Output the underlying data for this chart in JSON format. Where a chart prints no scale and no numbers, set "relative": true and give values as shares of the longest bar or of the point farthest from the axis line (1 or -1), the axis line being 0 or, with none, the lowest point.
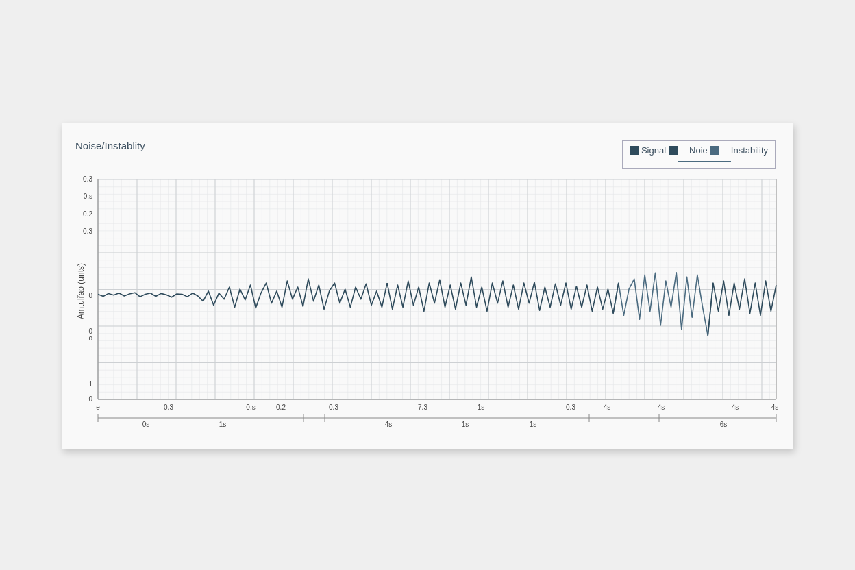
{
  "chart_data": {
    "type": "line",
    "title": "Noise/Instablity",
    "ylabel": "Amtulřao (unts)",
    "relative": true,
    "grid": true,
    "legend": "top right",
    "marker": "none",
    "line_style": "solid",
    "categories": [
      null,
      null,
      null,
      null,
      null,
      null,
      null,
      null,
      null,
      null,
      null,
      null,
      null,
      null,
      null,
      null,
      null,
      null,
      null,
      null,
      null,
      null,
      null,
      null,
      null,
      null,
      null,
      null,
      null,
      null,
      null,
      null,
      null,
      null,
      null,
      null,
      null,
      null,
      null,
      null,
      null,
      null,
      null,
      null,
      null,
      null,
      null,
      null,
      null,
      null,
      null,
      null,
      null,
      null,
      null,
      null,
      null,
      null,
      null,
      null,
      null,
      null,
      null,
      null,
      null,
      null,
      null,
      null,
      null,
      null,
      null,
      null,
      null,
      null,
      null,
      null,
      null,
      null,
      null,
      null,
      null,
      null,
      null,
      null,
      null,
      null,
      null,
      null,
      null,
      null,
      null,
      null,
      null,
      null,
      null,
      null,
      null,
      null,
      null,
      null,
      null,
      null,
      null,
      null,
      null,
      null,
      null,
      null,
      null,
      null,
      null,
      null,
      null,
      null,
      null,
      null,
      null,
      null,
      null,
      null,
      null,
      null,
      null,
      null,
      null,
      null,
      null,
      null,
      null,
      null
    ],
    "series": [
      {
        "name": "Signal",
        "color": "#2f4b5c",
        "values": [
          0.02,
          -0.03,
          0.04,
          0.0,
          0.05,
          -0.02,
          0.03,
          0.06,
          -0.04,
          0.02,
          0.05,
          -0.03,
          0.04,
          0.01,
          -0.05,
          0.03,
          0.02,
          -0.04,
          0.05,
          -0.02,
          -0.15,
          0.1,
          -0.25,
          0.05,
          -0.1,
          0.2,
          -0.3,
          0.15,
          -0.12,
          0.25,
          -0.32,
          0.05,
          0.3,
          -0.2,
          0.1,
          -0.3,
          0.35,
          -0.1,
          0.2,
          -0.28,
          0.4,
          -0.15,
          0.25,
          -0.35,
          0.1,
          0.3,
          -0.2,
          0.15,
          -0.3,
          0.2,
          -0.1,
          0.28,
          -0.25,
          0.1,
          -0.3,
          0.3,
          null,
          null,
          null,
          null,
          null,
          null,
          null,
          null,
          null,
          null,
          null,
          null,
          null,
          null,
          null,
          null,
          null,
          null,
          null,
          null,
          null,
          null,
          null,
          null,
          null,
          null,
          null,
          null,
          null,
          null,
          null,
          null,
          null,
          null,
          null,
          null,
          null,
          null,
          null,
          null,
          null,
          null,
          null,
          null,
          null,
          null,
          null,
          null,
          null,
          null,
          null,
          null,
          null,
          null,
          null,
          null,
          null,
          null,
          null,
          null,
          null,
          null,
          null,
          null,
          null,
          null,
          null,
          null,
          null,
          null,
          null,
          null,
          null,
          null
        ]
      },
      {
        "name": "—Noie",
        "color": "#2f4b5c",
        "values": [
          null,
          null,
          null,
          null,
          null,
          null,
          null,
          null,
          null,
          null,
          null,
          null,
          null,
          null,
          null,
          null,
          null,
          null,
          null,
          null,
          null,
          null,
          null,
          null,
          null,
          null,
          null,
          null,
          null,
          null,
          null,
          null,
          null,
          null,
          null,
          null,
          null,
          null,
          null,
          null,
          null,
          null,
          null,
          null,
          null,
          null,
          null,
          null,
          null,
          null,
          null,
          null,
          null,
          null,
          null,
          0.3,
          -0.35,
          0.25,
          -0.3,
          0.35,
          -0.25,
          0.2,
          -0.4,
          0.3,
          -0.2,
          0.38,
          -0.3,
          0.25,
          -0.35,
          0.3,
          -0.25,
          0.45,
          -0.3,
          0.2,
          -0.4,
          0.3,
          -0.2,
          0.35,
          -0.3,
          0.25,
          -0.35,
          0.3,
          -0.2,
          0.32,
          -0.38,
          0.2,
          -0.3,
          0.28,
          -0.25,
          0.3,
          -0.35,
          0.22,
          -0.3,
          0.25,
          -0.4,
          0.2,
          -0.35,
          0.15,
          -0.45,
          0.3,
          null,
          null,
          null,
          null,
          null,
          null,
          null,
          null,
          null,
          null,
          null,
          null,
          null,
          null,
          null,
          null,
          -1,
          0.3,
          -0.4,
          0.35,
          -0.5,
          0.3,
          -0.35,
          0.4,
          -0.45,
          0.3,
          -0.5,
          0.35,
          -0.4,
          0.25
        ]
      },
      {
        "name": "—Instability",
        "color": "#4b6b80",
        "values": [
          null,
          null,
          null,
          null,
          null,
          null,
          null,
          null,
          null,
          null,
          null,
          null,
          null,
          null,
          null,
          null,
          null,
          null,
          null,
          null,
          null,
          null,
          null,
          null,
          null,
          null,
          null,
          null,
          null,
          null,
          null,
          null,
          null,
          null,
          null,
          null,
          null,
          null,
          null,
          null,
          null,
          null,
          null,
          null,
          null,
          null,
          null,
          null,
          null,
          null,
          null,
          null,
          null,
          null,
          null,
          null,
          null,
          null,
          null,
          null,
          null,
          null,
          null,
          null,
          null,
          null,
          null,
          null,
          null,
          null,
          null,
          null,
          null,
          null,
          null,
          null,
          null,
          null,
          null,
          null,
          null,
          null,
          null,
          null,
          null,
          null,
          null,
          null,
          null,
          null,
          null,
          null,
          null,
          null,
          null,
          null,
          null,
          null,
          -0.45,
          0.3,
          -0.5,
          0.15,
          0.4,
          -0.6,
          0.5,
          -0.4,
          0.55,
          -0.75,
          0.35,
          -0.3,
          0.56,
          -0.85,
          0.45,
          -0.55,
          0.5,
          -0.3,
          -1,
          0.3,
          null,
          null,
          null,
          null,
          null,
          null,
          null,
          null,
          null,
          null,
          null,
          null
        ]
      }
    ],
    "annotations": [
      "0.3",
      "0.s",
      "0.2",
      "0.3",
      "0",
      "0",
      "o",
      "1",
      "0",
      "e",
      "0.3",
      "0.s",
      "0.2",
      "0.3",
      "7.3",
      "1s",
      "0.3",
      "4s",
      "4s",
      "4s",
      "4s",
      "0s",
      "1s",
      "4s",
      "1s",
      "1s",
      "6s"
    ]
  }
}
